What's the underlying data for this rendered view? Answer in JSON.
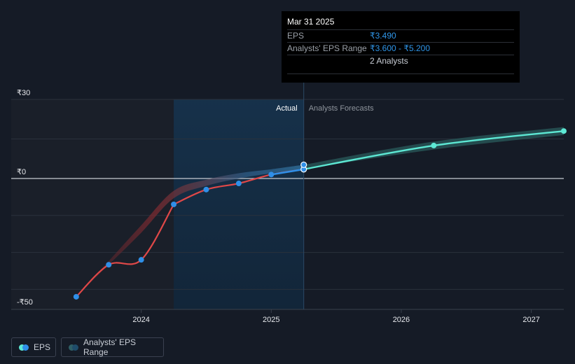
{
  "chart_data": {
    "type": "line",
    "currency_symbol": "₹",
    "y_ticks": [
      {
        "value": 30,
        "label": "₹30"
      },
      {
        "value": 0,
        "label": "₹0"
      },
      {
        "value": -50,
        "label": "-₹50"
      }
    ],
    "x_ticks": [
      {
        "value": 2024.0,
        "label": "2024"
      },
      {
        "value": 2025.0,
        "label": "2025"
      },
      {
        "value": 2026.0,
        "label": "2026"
      },
      {
        "value": 2027.0,
        "label": "2027"
      }
    ],
    "xlim": [
      2023.0,
      2027.25
    ],
    "ylim": [
      -50,
      30
    ],
    "regions": {
      "actual_label": "Actual",
      "forecast_label": "Analysts Forecasts",
      "highlight_start": 2024.25,
      "divider": 2025.25
    },
    "series": [
      {
        "name": "EPS",
        "color_past": "#e04848",
        "color_recent": "#2f8fe8",
        "points": [
          {
            "x": 2023.5,
            "y": -48.0
          },
          {
            "x": 2023.75,
            "y": -35.0
          },
          {
            "x": 2024.0,
            "y": -33.0
          },
          {
            "x": 2024.25,
            "y": -10.5
          },
          {
            "x": 2024.5,
            "y": -4.5
          },
          {
            "x": 2024.75,
            "y": -2.0
          },
          {
            "x": 2025.0,
            "y": 1.5
          },
          {
            "x": 2025.25,
            "y": 3.49
          }
        ]
      },
      {
        "name": "EPS Forecast",
        "color": "#5de8d4",
        "points": [
          {
            "x": 2025.25,
            "y": 3.49
          },
          {
            "x": 2026.25,
            "y": 12.5
          },
          {
            "x": 2027.25,
            "y": 18.0
          }
        ]
      }
    ],
    "range": {
      "name": "Analysts' EPS Range",
      "low": [
        {
          "x": 2023.5,
          "y": -48.0
        },
        {
          "x": 2023.75,
          "y": -35.0
        },
        {
          "x": 2024.0,
          "y": -22.0
        },
        {
          "x": 2024.25,
          "y": -8.0
        },
        {
          "x": 2024.5,
          "y": -3.0
        },
        {
          "x": 2024.75,
          "y": 0.0
        },
        {
          "x": 2025.0,
          "y": 2.0
        },
        {
          "x": 2025.25,
          "y": 3.6
        },
        {
          "x": 2026.25,
          "y": 11.0
        },
        {
          "x": 2027.25,
          "y": 16.5
        }
      ],
      "high": [
        {
          "x": 2023.5,
          "y": -48.0
        },
        {
          "x": 2023.75,
          "y": -33.5
        },
        {
          "x": 2024.0,
          "y": -19.0
        },
        {
          "x": 2024.25,
          "y": -5.0
        },
        {
          "x": 2024.5,
          "y": -0.5
        },
        {
          "x": 2024.75,
          "y": 2.0
        },
        {
          "x": 2025.0,
          "y": 3.5
        },
        {
          "x": 2025.25,
          "y": 5.2
        },
        {
          "x": 2026.25,
          "y": 14.0
        },
        {
          "x": 2027.25,
          "y": 19.5
        }
      ]
    }
  },
  "tooltip": {
    "date": "Mar 31 2025",
    "eps_label": "EPS",
    "eps_value": "₹3.490",
    "range_label": "Analysts' EPS Range",
    "range_value": "₹3.600 - ₹5.200",
    "analysts": "2 Analysts"
  },
  "legend": {
    "eps_label": "EPS",
    "range_label": "Analysts' EPS Range"
  }
}
